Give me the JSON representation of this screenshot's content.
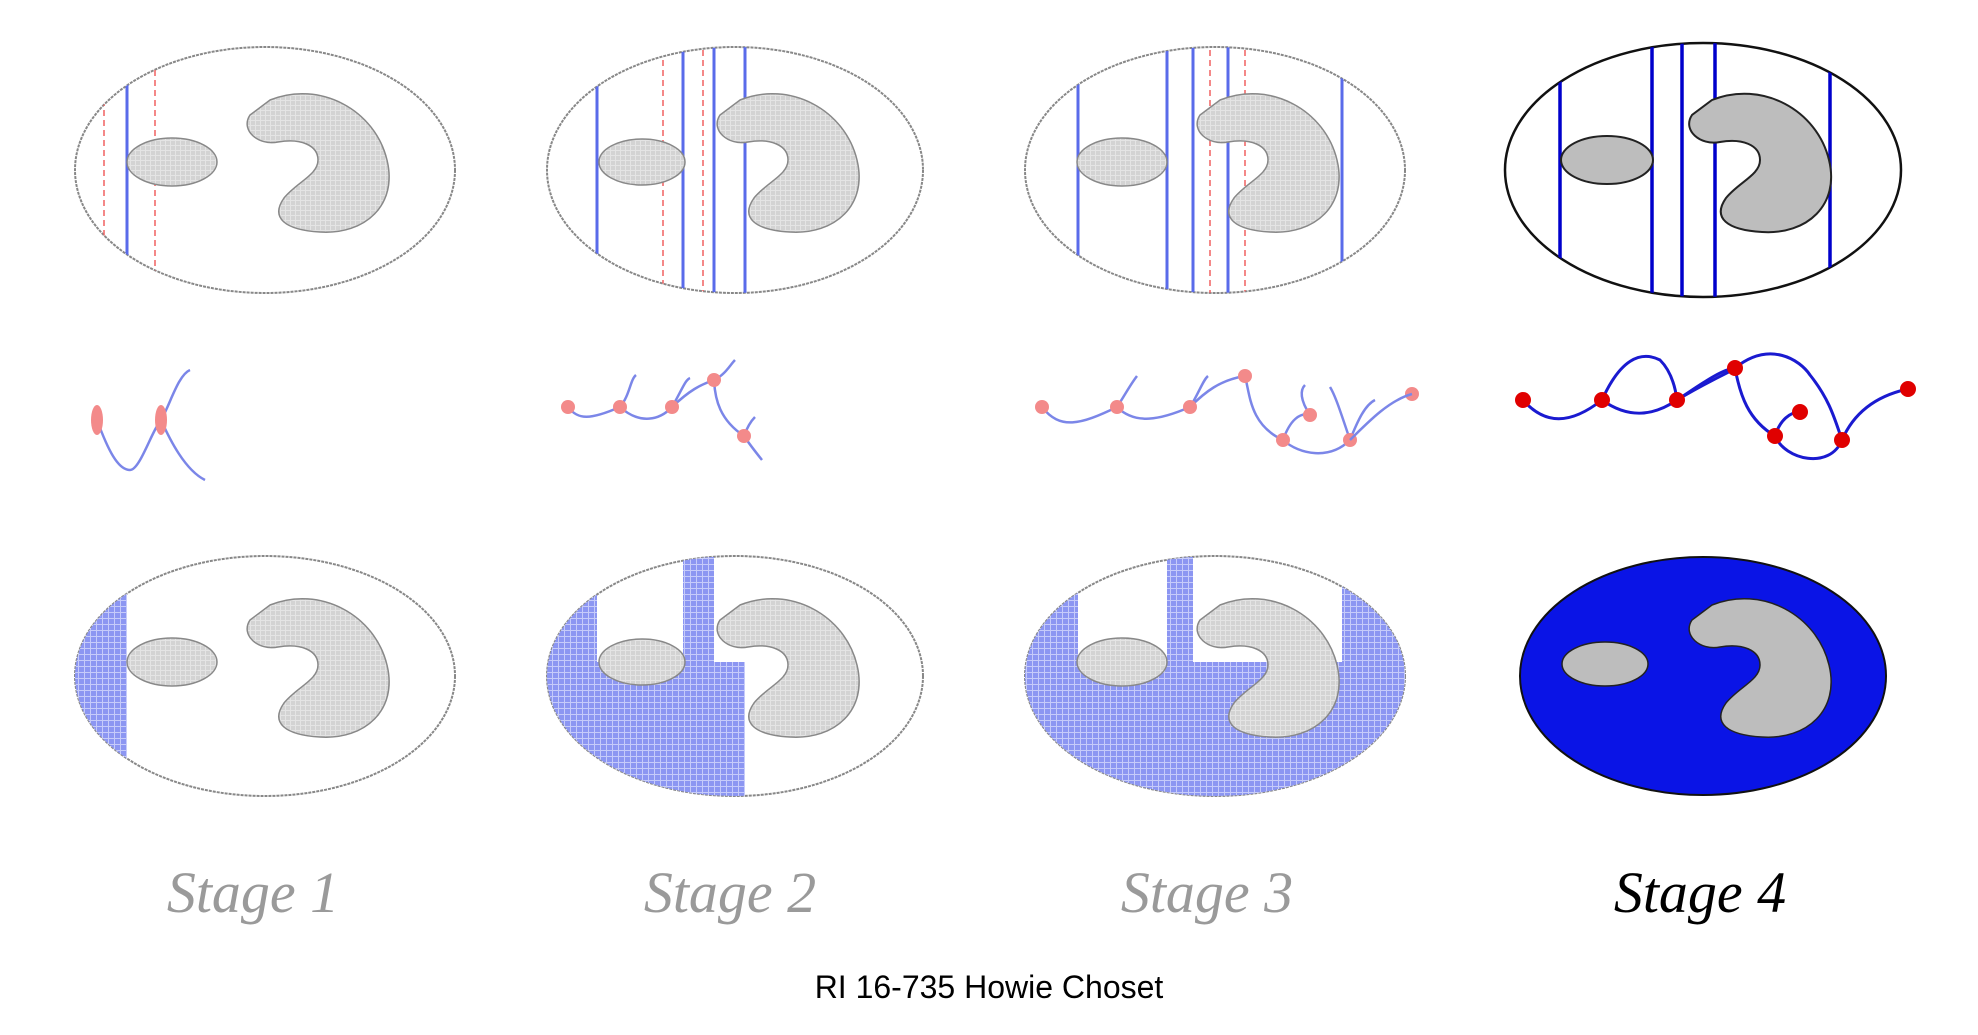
{
  "stages": [
    {
      "label": "Stage 1"
    },
    {
      "label": "Stage 2"
    },
    {
      "label": "Stage 3"
    },
    {
      "label": "Stage 4"
    }
  ],
  "footer": "RI 16-735 Howie Choset",
  "colors": {
    "obstacle": "#cfcfcf",
    "obstacle_final": "#bdbdbd",
    "slice": "#5a6bea",
    "slice_final": "#0000cc",
    "pending_slice": "#f06060",
    "covered_fill": "#8c96f2",
    "covered_fill_final": "#0a14e6",
    "graph_edge": "#7b86e8",
    "graph_edge_final": "#1a1ad0",
    "graph_node": "#f38a8a",
    "graph_node_final": "#e00000"
  }
}
